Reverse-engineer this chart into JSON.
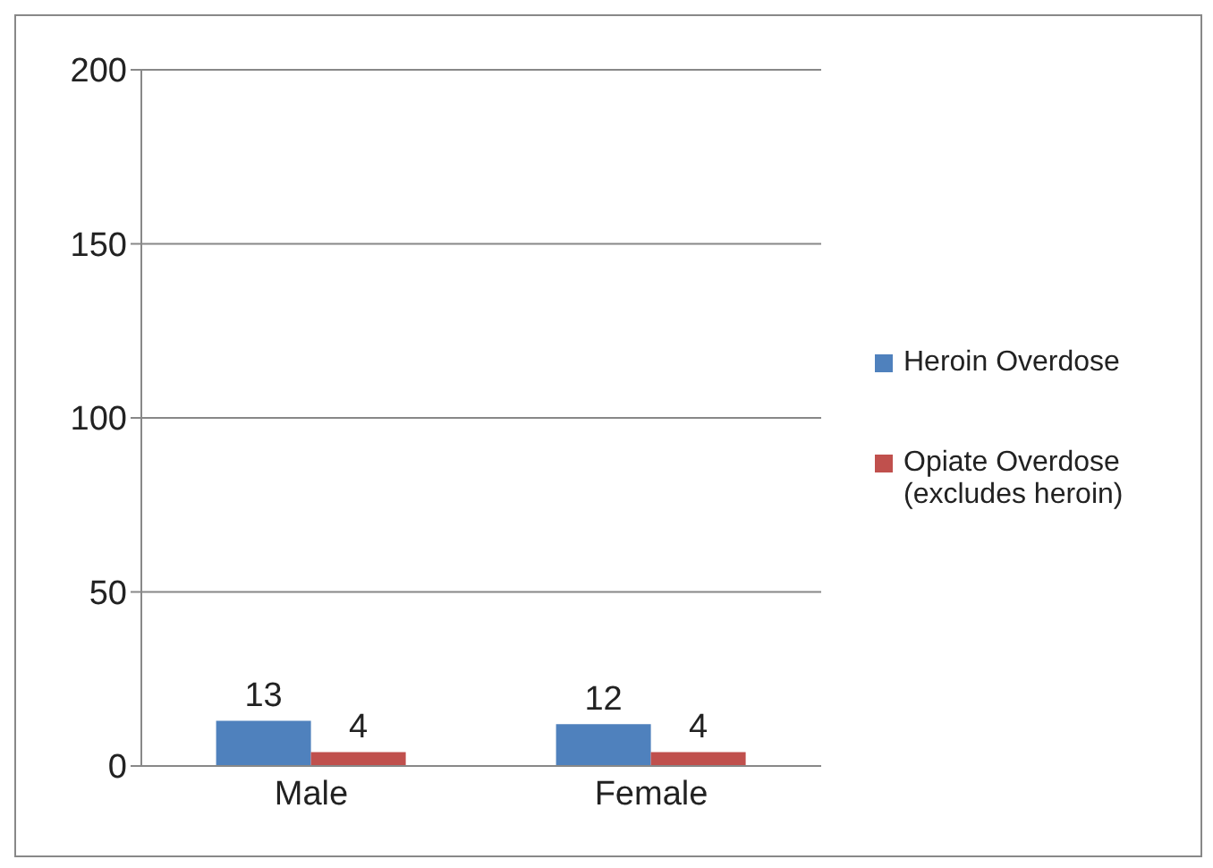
{
  "chart_data": {
    "type": "bar",
    "categories": [
      "Male",
      "Female"
    ],
    "series": [
      {
        "name": "Heroin Overdose",
        "color": "#4f81bd",
        "values": [
          13,
          12
        ]
      },
      {
        "name": "Opiate Overdose (excludes heroin)",
        "color": "#c0504d",
        "values": [
          4,
          4
        ]
      }
    ],
    "ylim": [
      0,
      200
    ],
    "yticks": [
      0,
      50,
      100,
      150,
      200
    ],
    "grid": "y",
    "legend": "right",
    "data_labels": true
  }
}
